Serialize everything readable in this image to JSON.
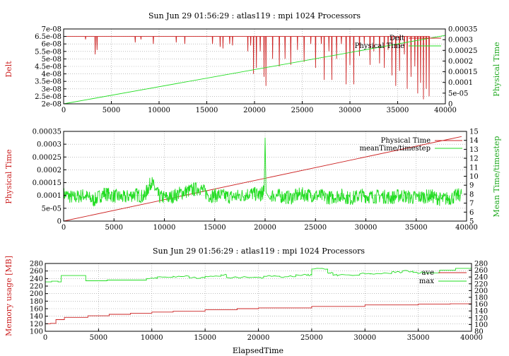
{
  "colors": {
    "red": "#cc2222",
    "green": "#22dd22",
    "axis": "#000000",
    "grid": "#999999"
  },
  "chart_data": [
    {
      "type": "line",
      "title": "Sun Jun 29 01:56:29 : atlas119 : mpi 1024 Processors",
      "ylabel": "Delt",
      "y2label": "Physical Time",
      "xlim": [
        0,
        40000
      ],
      "ylim": [
        2e-08,
        7e-08
      ],
      "y2lim": [
        0,
        0.00035
      ],
      "xticks": [
        "0",
        "5000",
        "10000",
        "15000",
        "20000",
        "25000",
        "30000",
        "35000",
        "40000"
      ],
      "yticks": [
        "2e-08",
        "2.5e-08",
        "3e-08",
        "3.5e-08",
        "4e-08",
        "4.5e-08",
        "5e-08",
        "5.5e-08",
        "6e-08",
        "6.5e-08",
        "7e-08"
      ],
      "y2ticks": [
        "0",
        "5e-05",
        "0.0001",
        "0.00015",
        "0.0002",
        "0.00025",
        "0.0003",
        "0.00035"
      ],
      "grid": true,
      "legend_position": "top-right",
      "series": [
        {
          "name": "Delt",
          "axis": "left",
          "color": "red",
          "baseline": 6.5e-08,
          "dips": [
            [
              2300,
              6.3e-08
            ],
            [
              3300,
              5.3e-08
            ],
            [
              3500,
              5.6e-08
            ],
            [
              7500,
              6.1e-08
            ],
            [
              8100,
              6.3e-08
            ],
            [
              9400,
              6e-08
            ],
            [
              11800,
              6.1e-08
            ],
            [
              12700,
              6e-08
            ],
            [
              15600,
              6e-08
            ],
            [
              16400,
              5.8e-08
            ],
            [
              16700,
              5.7e-08
            ],
            [
              17400,
              6e-08
            ],
            [
              17700,
              5.9e-08
            ],
            [
              19300,
              5.5e-08
            ],
            [
              19600,
              5.9e-08
            ],
            [
              19900,
              4e-08
            ],
            [
              20200,
              4.4e-08
            ],
            [
              20600,
              5.5e-08
            ],
            [
              21000,
              3.8e-08
            ],
            [
              21200,
              3.2e-08
            ],
            [
              21900,
              5e-08
            ],
            [
              22600,
              4.5e-08
            ],
            [
              23200,
              5e-08
            ],
            [
              23800,
              4.6e-08
            ],
            [
              24500,
              5.6e-08
            ],
            [
              25200,
              4.8e-08
            ],
            [
              25900,
              6e-08
            ],
            [
              26400,
              4.4e-08
            ],
            [
              27000,
              6e-08
            ],
            [
              27300,
              3.6e-08
            ],
            [
              27800,
              5.5e-08
            ],
            [
              28100,
              3.6e-08
            ],
            [
              28600,
              5e-08
            ],
            [
              29100,
              6e-08
            ],
            [
              29600,
              3.3e-08
            ],
            [
              30000,
              4.6e-08
            ],
            [
              30400,
              3.3e-08
            ],
            [
              31000,
              5.2e-08
            ],
            [
              31500,
              6e-08
            ],
            [
              32100,
              4.6e-08
            ],
            [
              32500,
              5.5e-08
            ],
            [
              33100,
              4.7e-08
            ],
            [
              33600,
              4.4e-08
            ],
            [
              34000,
              5.6e-08
            ],
            [
              34400,
              3.9e-08
            ],
            [
              34800,
              3.2e-08
            ],
            [
              35200,
              4.2e-08
            ],
            [
              35700,
              5.3e-08
            ],
            [
              36000,
              3e-08
            ],
            [
              36400,
              3.8e-08
            ],
            [
              36800,
              4.5e-08
            ],
            [
              37100,
              2.7e-08
            ],
            [
              37400,
              3.4e-08
            ],
            [
              37700,
              2.3e-08
            ],
            [
              38000,
              3e-08
            ],
            [
              38300,
              2.5e-08
            ]
          ]
        },
        {
          "name": "Physical Time",
          "axis": "right",
          "color": "green",
          "x": [
            0,
            40000
          ],
          "y": [
            0,
            0.00032
          ]
        }
      ]
    },
    {
      "type": "line",
      "ylabel": "Physical Time",
      "y2label": "Mean Time/timestep",
      "xlim": [
        0,
        40000
      ],
      "ylim": [
        0,
        0.00035
      ],
      "y2lim": [
        5,
        15
      ],
      "xticks": [
        "0",
        "5000",
        "10000",
        "15000",
        "20000",
        "25000",
        "30000",
        "35000",
        "40000"
      ],
      "yticks": [
        "0",
        "5e-05",
        "0.0001",
        "0.00015",
        "0.0002",
        "0.00025",
        "0.0003",
        "0.00035"
      ],
      "y2ticks": [
        "5",
        "6",
        "7",
        "8",
        "9",
        "10",
        "11",
        "12",
        "13",
        "14",
        "15"
      ],
      "grid": true,
      "legend_position": "top-right",
      "series": [
        {
          "name": "Physical Time",
          "axis": "left",
          "color": "red",
          "x": [
            0,
            39500
          ],
          "y": [
            0,
            0.00033
          ]
        },
        {
          "name": "meanTime/timestep",
          "axis": "right",
          "color": "green",
          "x": [
            0,
            1000,
            2000,
            3000,
            4000,
            5000,
            6000,
            7000,
            8000,
            8700,
            9500,
            10500,
            11500,
            12500,
            13500,
            14500,
            15500,
            16500,
            17500,
            18500,
            19500,
            19900,
            20000,
            20100,
            20500,
            21500,
            22500,
            23500,
            24500,
            25500,
            26500,
            27500,
            28500,
            29500,
            30500,
            31500,
            32500,
            33500,
            34500,
            35500,
            36500,
            37500,
            38500,
            39500
          ],
          "y": [
            8.0,
            7.6,
            7.9,
            7.3,
            8.1,
            7.8,
            7.6,
            8.0,
            7.7,
            9.4,
            7.7,
            7.6,
            8.1,
            8.4,
            8.7,
            7.8,
            7.9,
            7.7,
            7.8,
            8.1,
            7.9,
            8.3,
            14.3,
            8.2,
            7.9,
            7.8,
            7.6,
            8.0,
            7.9,
            7.8,
            7.6,
            7.9,
            7.5,
            7.9,
            7.7,
            7.8,
            7.6,
            7.9,
            7.6,
            7.7,
            7.8,
            7.4,
            7.6,
            8.0
          ]
        }
      ]
    },
    {
      "type": "line",
      "title": "Sun Jun 29 01:56:29 : atlas119 : mpi 1024 Processors",
      "xlabel": "ElapsedTime",
      "ylabel": "Memory usage [MB]",
      "xlim": [
        0,
        40000
      ],
      "ylim": [
        100,
        280
      ],
      "y2lim": [
        80,
        280
      ],
      "xticks": [
        "0",
        "5000",
        "10000",
        "15000",
        "20000",
        "25000",
        "30000",
        "35000",
        "40000"
      ],
      "yticks": [
        "100",
        "120",
        "140",
        "160",
        "180",
        "200",
        "220",
        "240",
        "260",
        "280"
      ],
      "y2ticks": [
        "80",
        "100",
        "120",
        "140",
        "160",
        "180",
        "200",
        "220",
        "240",
        "260",
        "280"
      ],
      "grid": true,
      "legend_position": "top-right",
      "series": [
        {
          "name": "ave",
          "color": "red",
          "x": [
            0,
            500,
            1000,
            1800,
            2500,
            4000,
            6000,
            8000,
            10000,
            12000,
            15000,
            18000,
            20000,
            25000,
            30000,
            35000,
            38000,
            40000
          ],
          "y": [
            120,
            121,
            131,
            137,
            137,
            141,
            145,
            148,
            151,
            153,
            157,
            160,
            162,
            166,
            170,
            172,
            173,
            175
          ]
        },
        {
          "name": "max",
          "color": "green",
          "x": [
            0,
            600,
            1200,
            1500,
            3800,
            5800,
            8000,
            9500,
            10500,
            12000,
            13500,
            15000,
            16500,
            17000,
            19500,
            20500,
            22000,
            23500,
            24500,
            25000,
            26500,
            27000,
            27500,
            29500,
            30500,
            32500,
            33500,
            34500,
            35500,
            37000,
            38500,
            40000
          ],
          "y": [
            231,
            233,
            231,
            248,
            234,
            236,
            236,
            240,
            244,
            246,
            242,
            246,
            250,
            243,
            243,
            246,
            245,
            250,
            249,
            265,
            255,
            249,
            249,
            252,
            253,
            257,
            260,
            256,
            255,
            262,
            267,
            268
          ]
        }
      ]
    }
  ]
}
